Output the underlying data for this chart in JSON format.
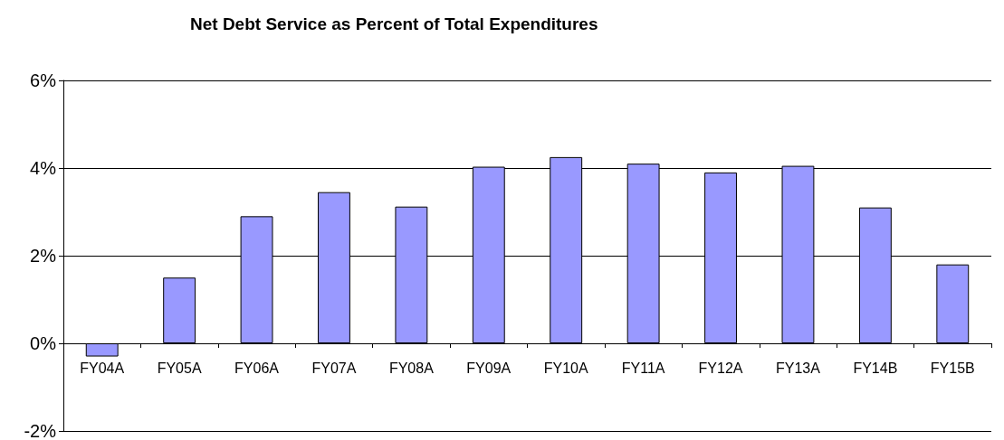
{
  "chart_data": {
    "type": "bar",
    "title": "Net Debt Service as Percent of Total Expenditures",
    "categories": [
      "FY04A",
      "FY05A",
      "FY06A",
      "FY07A",
      "FY08A",
      "FY09A",
      "FY10A",
      "FY11A",
      "FY12A",
      "FY13A",
      "FY14B",
      "FY15B"
    ],
    "values": [
      -0.3,
      1.5,
      2.9,
      3.45,
      3.12,
      4.03,
      4.25,
      4.1,
      3.9,
      4.05,
      3.1,
      1.8
    ],
    "color": "#9999ff",
    "ylim": [
      -2,
      6
    ],
    "yticks": [
      {
        "value": -2,
        "label": "-2%"
      },
      {
        "value": 0,
        "label": "0%"
      },
      {
        "value": 2,
        "label": "2%"
      },
      {
        "value": 4,
        "label": "4%"
      },
      {
        "value": 6,
        "label": "6%"
      }
    ],
    "grid": "y"
  }
}
